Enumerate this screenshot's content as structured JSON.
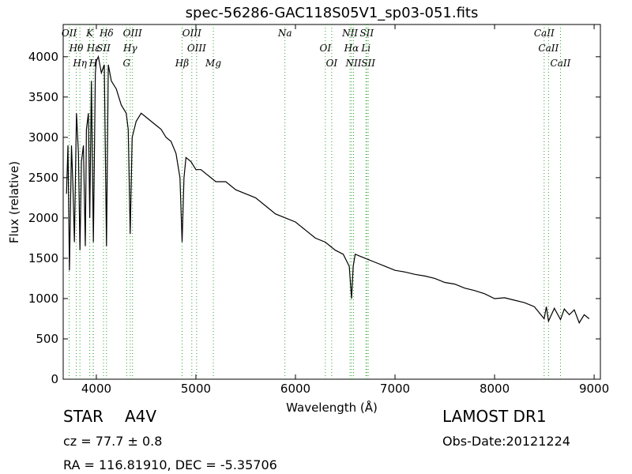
{
  "chart_data": {
    "type": "line",
    "title": "spec-56286-GAC118S05V1_sp03-051.fits",
    "x_label": "Wavelength (Å)",
    "y_label": "Flux (relative)",
    "xlim": [
      3667,
      9063
    ],
    "ylim": [
      0,
      4400
    ],
    "xticks": [
      4000,
      5000,
      6000,
      7000,
      8000,
      9000
    ],
    "yticks": [
      0,
      500,
      1000,
      1500,
      2000,
      2500,
      3000,
      3500,
      4000
    ],
    "color": "#000000",
    "line_color": "#2ca02c",
    "x": [
      3700,
      3715,
      3730,
      3750,
      3765,
      3780,
      3800,
      3820,
      3835,
      3850,
      3870,
      3889,
      3900,
      3920,
      3934,
      3950,
      3970,
      3990,
      4000,
      4020,
      4050,
      4080,
      4102,
      4120,
      4150,
      4200,
      4250,
      4300,
      4320,
      4340,
      4360,
      4400,
      4450,
      4500,
      4550,
      4600,
      4650,
      4700,
      4750,
      4800,
      4840,
      4861,
      4880,
      4900,
      4950,
      5000,
      5050,
      5100,
      5150,
      5200,
      5300,
      5400,
      5500,
      5600,
      5700,
      5800,
      5900,
      6000,
      6100,
      6200,
      6300,
      6400,
      6480,
      6540,
      6563,
      6580,
      6600,
      6700,
      6800,
      6900,
      7000,
      7100,
      7200,
      7300,
      7400,
      7500,
      7600,
      7700,
      7800,
      7900,
      8000,
      8100,
      8200,
      8300,
      8400,
      8498,
      8520,
      8542,
      8600,
      8662,
      8700,
      8750,
      8800,
      8850,
      8900,
      8950
    ],
    "values": [
      2300,
      2900,
      1350,
      2900,
      2400,
      1700,
      3300,
      2800,
      1600,
      2700,
      2900,
      1650,
      3100,
      3300,
      2000,
      3700,
      1700,
      3800,
      3950,
      4000,
      3800,
      3900,
      1650,
      3900,
      3700,
      3600,
      3400,
      3300,
      3100,
      1800,
      3000,
      3200,
      3300,
      3250,
      3200,
      3150,
      3100,
      3000,
      2950,
      2800,
      2500,
      1700,
      2500,
      2750,
      2700,
      2600,
      2600,
      2550,
      2500,
      2450,
      2450,
      2350,
      2300,
      2250,
      2150,
      2050,
      2000,
      1950,
      1850,
      1750,
      1700,
      1600,
      1550,
      1400,
      1000,
      1400,
      1550,
      1500,
      1450,
      1400,
      1350,
      1330,
      1300,
      1280,
      1250,
      1200,
      1180,
      1130,
      1100,
      1060,
      1000,
      1010,
      980,
      950,
      900,
      750,
      900,
      720,
      880,
      740,
      870,
      800,
      860,
      700,
      800,
      750
    ],
    "lines": [
      {
        "label": "OII",
        "wavelength": 3727
      },
      {
        "label": "Hθ",
        "wavelength": 3798
      },
      {
        "label": "Hη",
        "wavelength": 3835
      },
      {
        "label": "K",
        "wavelength": 3934
      },
      {
        "label": "Hε",
        "wavelength": 3970
      },
      {
        "label": "H",
        "wavelength": 3968
      },
      {
        "label": "Hδ",
        "wavelength": 4102
      },
      {
        "label": "SII",
        "wavelength": 4072
      },
      {
        "label": "G",
        "wavelength": 4304
      },
      {
        "label": "OIII",
        "wavelength": 4363
      },
      {
        "label": "Hγ",
        "wavelength": 4340
      },
      {
        "label": "Hβ",
        "wavelength": 4861
      },
      {
        "label": "OIII",
        "wavelength": 4959
      },
      {
        "label": "OIII",
        "wavelength": 5007
      },
      {
        "label": "Mg",
        "wavelength": 5175
      },
      {
        "label": "Na",
        "wavelength": 5894
      },
      {
        "label": "OI",
        "wavelength": 6300
      },
      {
        "label": "OI",
        "wavelength": 6364
      },
      {
        "label": "NII",
        "wavelength": 6548
      },
      {
        "label": "Hα",
        "wavelength": 6563
      },
      {
        "label": "NII",
        "wavelength": 6583
      },
      {
        "label": "SII",
        "wavelength": 6716
      },
      {
        "label": "Li",
        "wavelength": 6708
      },
      {
        "label": "SII",
        "wavelength": 6731
      },
      {
        "label": "CaII",
        "wavelength": 8498
      },
      {
        "label": "CaII",
        "wavelength": 8542
      },
      {
        "label": "CaII",
        "wavelength": 8662
      }
    ],
    "object_class": "STAR",
    "subclass": "A4V",
    "survey": "LAMOST DR1",
    "redshift": "cz = 77.7 ± 0.8",
    "obs_date": "Obs-Date:20121224",
    "coords": "RA = 116.81910, DEC = -5.35706"
  }
}
